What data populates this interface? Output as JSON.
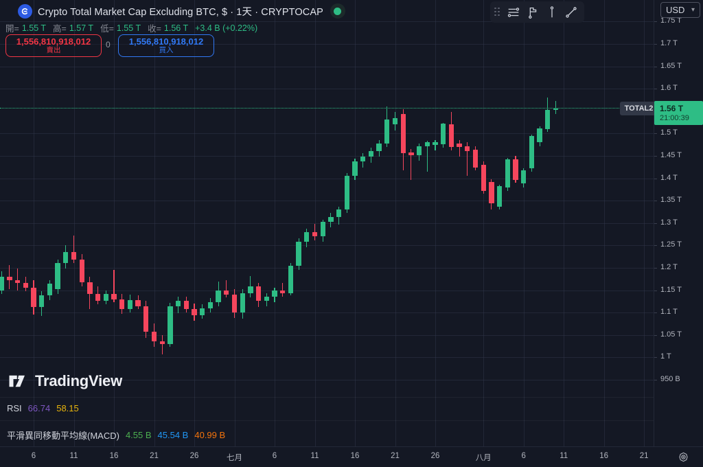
{
  "header": {
    "symbol_title": "Crypto Total Market Cap Excluding BTC, $ · 1天 · CRYPTOCAP",
    "ohlc": {
      "pairs": [
        {
          "label": "開=",
          "value": "1.55 T"
        },
        {
          "label": "高=",
          "value": "1.57 T"
        },
        {
          "label": "低=",
          "value": "1.55 T"
        },
        {
          "label": "收=",
          "value": "1.56 T"
        }
      ],
      "change": "+3.4 B (+0.22%)"
    },
    "sell_button": {
      "value": "1,556,810,918,012",
      "label": "賣出"
    },
    "spread": "0",
    "buy_button": {
      "value": "1,556,810,918,012",
      "label": "買入"
    }
  },
  "toolbar": {
    "icons": [
      "horizontal-lines-tool",
      "flag-price-note-tool",
      "vertical-line-tool",
      "trend-line-tool"
    ]
  },
  "currency_selector": {
    "value": "USD"
  },
  "price_scale": {
    "labels": [
      {
        "text": "1.75 T",
        "value": 1.75
      },
      {
        "text": "1.7 T",
        "value": 1.7
      },
      {
        "text": "1.65 T",
        "value": 1.65
      },
      {
        "text": "1.6 T",
        "value": 1.6
      },
      {
        "text": "1.5 T",
        "value": 1.5
      },
      {
        "text": "1.45 T",
        "value": 1.45
      },
      {
        "text": "1.4 T",
        "value": 1.4
      },
      {
        "text": "1.35 T",
        "value": 1.35
      },
      {
        "text": "1.3 T",
        "value": 1.3
      },
      {
        "text": "1.25 T",
        "value": 1.25
      },
      {
        "text": "1.2 T",
        "value": 1.2
      },
      {
        "text": "1.15 T",
        "value": 1.15
      },
      {
        "text": "1.1 T",
        "value": 1.1
      },
      {
        "text": "1.05 T",
        "value": 1.05
      },
      {
        "text": "1 T",
        "value": 1.0
      },
      {
        "text": "950 B",
        "value": 0.95
      }
    ],
    "symbol_label": "TOTAL2",
    "last_price_badge": {
      "price": "1.56 T",
      "countdown": "21:00:39"
    }
  },
  "time_scale": {
    "labels": [
      {
        "text": "6",
        "day": 4
      },
      {
        "text": "11",
        "day": 9
      },
      {
        "text": "16",
        "day": 14
      },
      {
        "text": "21",
        "day": 19
      },
      {
        "text": "26",
        "day": 24
      },
      {
        "text": "七月",
        "day": 29
      },
      {
        "text": "6",
        "day": 34
      },
      {
        "text": "11",
        "day": 39
      },
      {
        "text": "16",
        "day": 44
      },
      {
        "text": "21",
        "day": 49
      },
      {
        "text": "26",
        "day": 54
      },
      {
        "text": "八月",
        "day": 60
      },
      {
        "text": "6",
        "day": 65
      },
      {
        "text": "11",
        "day": 70
      },
      {
        "text": "16",
        "day": 75
      },
      {
        "text": "21",
        "day": 80
      }
    ]
  },
  "watermark": {
    "text": "TradingView"
  },
  "indicators": {
    "rsi": {
      "label": "RSI",
      "values": [
        {
          "text": "66.74",
          "color": "#7e57c2"
        },
        {
          "text": "58.15",
          "color": "#e8b40c"
        }
      ]
    },
    "macd": {
      "label": "平滑異同移動平均線(MACD)",
      "values": [
        {
          "text": "4.55 B",
          "color": "#4caf50"
        },
        {
          "text": "45.54 B",
          "color": "#2196f3"
        },
        {
          "text": "40.99 B",
          "color": "#f4740c"
        }
      ]
    }
  },
  "chart_data": {
    "type": "candlestick",
    "title": "Crypto Total Market Cap Excluding BTC (CRYPTOCAP:TOTAL2)",
    "interval": "1天",
    "unit": "trillion USD",
    "ylim": [
      0.93,
      1.78
    ],
    "grid": true,
    "last_price": 1.556,
    "columns": [
      "date",
      "open",
      "high",
      "low",
      "close"
    ],
    "candles": [
      [
        "06-02",
        1.15,
        1.192,
        1.142,
        1.18
      ],
      [
        "06-03",
        1.18,
        1.206,
        1.152,
        1.172
      ],
      [
        "06-04",
        1.172,
        1.198,
        1.15,
        1.166
      ],
      [
        "06-05",
        1.166,
        1.18,
        1.148,
        1.156
      ],
      [
        "06-06",
        1.156,
        1.172,
        1.096,
        1.112
      ],
      [
        "06-07",
        1.112,
        1.148,
        1.092,
        1.138
      ],
      [
        "06-08",
        1.138,
        1.172,
        1.128,
        1.164
      ],
      [
        "06-09",
        1.152,
        1.218,
        1.142,
        1.21
      ],
      [
        "06-10",
        1.21,
        1.25,
        1.198,
        1.236
      ],
      [
        "06-11",
        1.236,
        1.272,
        1.21,
        1.218
      ],
      [
        "06-12",
        1.218,
        1.23,
        1.158,
        1.168
      ],
      [
        "06-13",
        1.168,
        1.18,
        1.108,
        1.142
      ],
      [
        "06-14",
        1.142,
        1.158,
        1.118,
        1.126
      ],
      [
        "06-15",
        1.126,
        1.15,
        1.118,
        1.142
      ],
      [
        "06-16",
        1.142,
        1.196,
        1.124,
        1.13
      ],
      [
        "06-17",
        1.13,
        1.142,
        1.098,
        1.108
      ],
      [
        "06-18",
        1.108,
        1.14,
        1.1,
        1.128
      ],
      [
        "06-19",
        1.128,
        1.138,
        1.108,
        1.114
      ],
      [
        "06-20",
        1.114,
        1.126,
        1.044,
        1.058
      ],
      [
        "06-21",
        1.058,
        1.076,
        1.024,
        1.036
      ],
      [
        "06-22",
        1.036,
        1.05,
        1.006,
        1.03
      ],
      [
        "06-23",
        1.03,
        1.122,
        1.024,
        1.114
      ],
      [
        "06-24",
        1.114,
        1.136,
        1.098,
        1.126
      ],
      [
        "06-25",
        1.126,
        1.136,
        1.1,
        1.108
      ],
      [
        "06-26",
        1.108,
        1.12,
        1.082,
        1.094
      ],
      [
        "06-27",
        1.094,
        1.118,
        1.086,
        1.11
      ],
      [
        "06-28",
        1.11,
        1.132,
        1.1,
        1.124
      ],
      [
        "06-29",
        1.124,
        1.17,
        1.114,
        1.15
      ],
      [
        "06-30",
        1.15,
        1.172,
        1.134,
        1.14
      ],
      [
        "07-01",
        1.14,
        1.152,
        1.088,
        1.1
      ],
      [
        "07-02",
        1.1,
        1.152,
        1.086,
        1.144
      ],
      [
        "07-03",
        1.144,
        1.182,
        1.134,
        1.158
      ],
      [
        "07-04",
        1.158,
        1.166,
        1.112,
        1.126
      ],
      [
        "07-05",
        1.126,
        1.144,
        1.114,
        1.136
      ],
      [
        "07-06",
        1.136,
        1.156,
        1.124,
        1.15
      ],
      [
        "07-07",
        1.15,
        1.166,
        1.136,
        1.144
      ],
      [
        "07-08",
        1.144,
        1.21,
        1.138,
        1.204
      ],
      [
        "07-09",
        1.204,
        1.266,
        1.196,
        1.258
      ],
      [
        "07-10",
        1.258,
        1.288,
        1.246,
        1.28
      ],
      [
        "07-11",
        1.28,
        1.298,
        1.262,
        1.27
      ],
      [
        "07-12",
        1.27,
        1.308,
        1.258,
        1.302
      ],
      [
        "07-13",
        1.302,
        1.322,
        1.29,
        1.314
      ],
      [
        "07-14",
        1.314,
        1.336,
        1.296,
        1.33
      ],
      [
        "07-15",
        1.33,
        1.412,
        1.322,
        1.406
      ],
      [
        "07-16",
        1.406,
        1.444,
        1.396,
        1.438
      ],
      [
        "07-17",
        1.438,
        1.456,
        1.424,
        1.448
      ],
      [
        "07-18",
        1.448,
        1.468,
        1.434,
        1.46
      ],
      [
        "07-19",
        1.46,
        1.486,
        1.448,
        1.478
      ],
      [
        "07-20",
        1.478,
        1.56,
        1.47,
        1.532
      ],
      [
        "07-21",
        1.52,
        1.548,
        1.506,
        1.534
      ],
      [
        "07-22",
        1.544,
        1.554,
        1.418,
        1.456
      ],
      [
        "07-23",
        1.458,
        1.466,
        1.396,
        1.452
      ],
      [
        "07-24",
        1.452,
        1.478,
        1.44,
        1.472
      ],
      [
        "07-25",
        1.472,
        1.484,
        1.414,
        1.48
      ],
      [
        "07-26",
        1.474,
        1.486,
        1.462,
        1.48
      ],
      [
        "07-27",
        1.476,
        1.524,
        1.468,
        1.522
      ],
      [
        "07-28",
        1.52,
        1.548,
        1.462,
        1.47
      ],
      [
        "07-29",
        1.478,
        1.486,
        1.448,
        1.47
      ],
      [
        "07-30",
        1.472,
        1.48,
        1.406,
        1.46
      ],
      [
        "07-31",
        1.464,
        1.472,
        1.418,
        1.424
      ],
      [
        "08-01",
        1.43,
        1.438,
        1.366,
        1.372
      ],
      [
        "08-02",
        1.392,
        1.398,
        1.33,
        1.344
      ],
      [
        "08-03",
        1.336,
        1.386,
        1.33,
        1.382
      ],
      [
        "08-04",
        1.38,
        1.446,
        1.372,
        1.442
      ],
      [
        "08-05",
        1.442,
        1.45,
        1.39,
        1.396
      ],
      [
        "08-06",
        1.388,
        1.422,
        1.38,
        1.418
      ],
      [
        "08-07",
        1.422,
        1.498,
        1.414,
        1.494
      ],
      [
        "08-08",
        1.48,
        1.516,
        1.472,
        1.512
      ],
      [
        "08-09",
        1.51,
        1.58,
        1.504,
        1.552
      ],
      [
        "08-10",
        1.552,
        1.572,
        1.544,
        1.556
      ]
    ]
  },
  "colors": {
    "up": "#2ebd85",
    "down": "#f6465d",
    "accent_blue": "#3179f5",
    "sell_red": "#f23645",
    "background": "#141824",
    "last_price_line": "#2ebd85"
  }
}
